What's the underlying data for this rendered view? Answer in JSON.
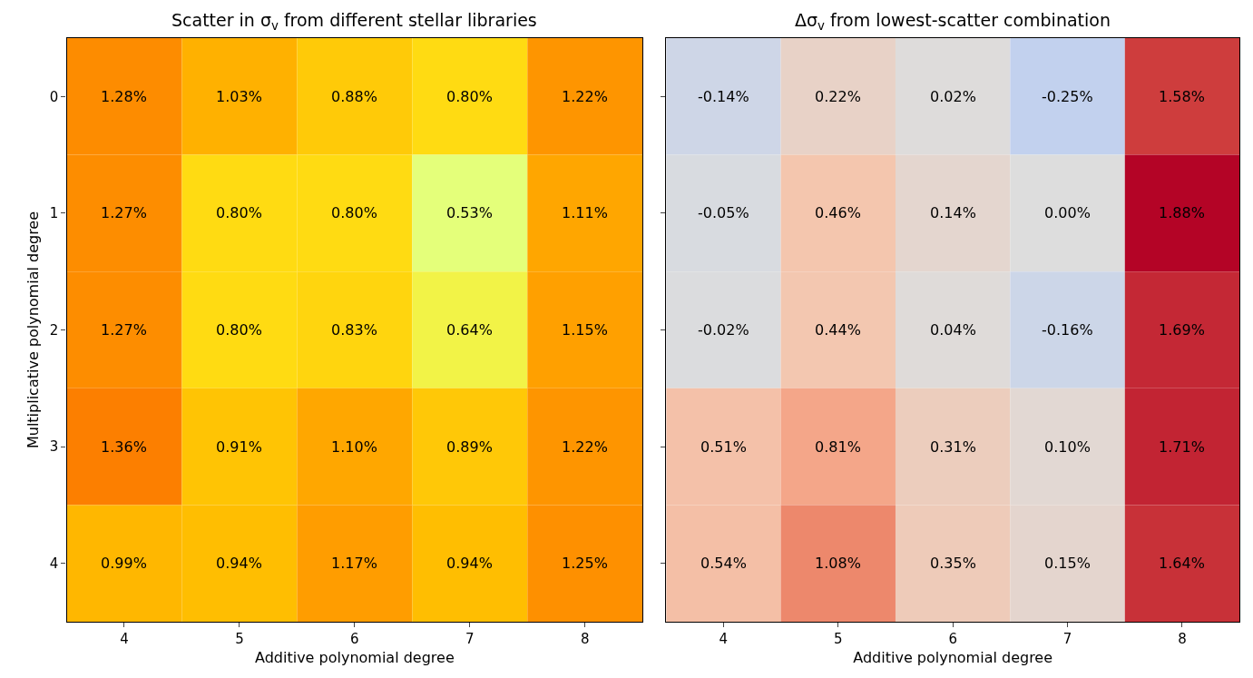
{
  "chart_data": [
    {
      "type": "heatmap",
      "title": "Scatter in σ$_{v}$ from different stellar libraries",
      "xlabel": "Additive polynomial degree",
      "ylabel": "Multiplicative polynomial degree",
      "categories": [
        "4",
        "5",
        "6",
        "7",
        "8"
      ],
      "y_categories": [
        "0",
        "1",
        "2",
        "3",
        "4"
      ],
      "cells": [
        [
          1.28,
          1.03,
          0.88,
          0.8,
          1.22
        ],
        [
          1.27,
          0.8,
          0.8,
          0.53,
          1.11
        ],
        [
          1.27,
          0.8,
          0.83,
          0.64,
          1.15
        ],
        [
          1.36,
          0.91,
          1.1,
          0.89,
          1.22
        ],
        [
          0.99,
          0.94,
          1.17,
          0.94,
          1.25
        ]
      ],
      "cell_labels": [
        [
          "1.28%",
          "1.03%",
          "0.88%",
          "0.80%",
          "1.22%"
        ],
        [
          "1.27%",
          "0.80%",
          "0.80%",
          "0.53%",
          "1.11%"
        ],
        [
          "1.27%",
          "0.80%",
          "0.83%",
          "0.64%",
          "1.15%"
        ],
        [
          "1.36%",
          "0.91%",
          "1.10%",
          "0.89%",
          "1.22%"
        ],
        [
          "0.99%",
          "0.94%",
          "1.17%",
          "0.94%",
          "1.25%"
        ]
      ]
    },
    {
      "type": "heatmap",
      "title": "Δσ$_{v}$ from lowest-scatter combination",
      "xlabel": "Additive polynomial degree",
      "categories": [
        "4",
        "5",
        "6",
        "7",
        "8"
      ],
      "y_categories": [
        "0",
        "1",
        "2",
        "3",
        "4"
      ],
      "tick_labels": "x",
      "cells": [
        [
          -0.14,
          0.22,
          0.02,
          -0.25,
          1.58
        ],
        [
          -0.05,
          0.46,
          0.14,
          0.0,
          1.88
        ],
        [
          -0.02,
          0.44,
          0.04,
          -0.16,
          1.69
        ],
        [
          0.51,
          0.81,
          0.31,
          0.1,
          1.71
        ],
        [
          0.54,
          1.08,
          0.35,
          0.15,
          1.64
        ]
      ],
      "cell_labels": [
        [
          "-0.14%",
          "0.22%",
          "0.02%",
          "-0.25%",
          "1.58%"
        ],
        [
          "-0.05%",
          "0.46%",
          "0.14%",
          "0.00%",
          "1.88%"
        ],
        [
          "-0.02%",
          "0.44%",
          "0.04%",
          "-0.16%",
          "1.69%"
        ],
        [
          "0.51%",
          "0.81%",
          "0.31%",
          "0.10%",
          "1.71%"
        ],
        [
          "0.54%",
          "1.08%",
          "0.35%",
          "0.15%",
          "1.64%"
        ]
      ]
    }
  ]
}
